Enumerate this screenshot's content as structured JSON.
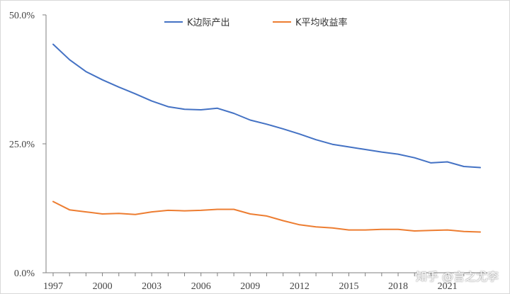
{
  "chart_data": {
    "type": "line",
    "x": [
      1997,
      1998,
      1999,
      2000,
      2001,
      2002,
      2003,
      2004,
      2005,
      2006,
      2007,
      2008,
      2009,
      2010,
      2011,
      2012,
      2013,
      2014,
      2015,
      2016,
      2017,
      2018,
      2019,
      2020,
      2021,
      2022,
      2023
    ],
    "x_ticks": [
      1997,
      2000,
      2003,
      2006,
      2009,
      2012,
      2015,
      2018,
      2021
    ],
    "y_ticks": [
      "50.0%",
      "25.0%",
      "0.0%"
    ],
    "y_tick_values": [
      50,
      25,
      0
    ],
    "ylim": [
      0,
      50
    ],
    "series": [
      {
        "name": "K边际产出",
        "color": "#4472c4",
        "values": [
          44.3,
          41.3,
          39.0,
          37.4,
          36.0,
          34.7,
          33.3,
          32.2,
          31.7,
          31.6,
          31.9,
          30.9,
          29.6,
          28.8,
          27.9,
          26.9,
          25.8,
          24.9,
          24.4,
          23.9,
          23.4,
          23.0,
          22.3,
          21.3,
          21.5,
          20.6,
          20.4
        ]
      },
      {
        "name": "K平均收益率",
        "color": "#ed7d31",
        "values": [
          13.8,
          12.2,
          11.8,
          11.4,
          11.5,
          11.3,
          11.8,
          12.1,
          12.0,
          12.1,
          12.3,
          12.3,
          11.4,
          11.0,
          10.1,
          9.3,
          8.9,
          8.7,
          8.3,
          8.3,
          8.4,
          8.4,
          8.1,
          8.2,
          8.3,
          8.0,
          7.9
        ]
      }
    ],
    "legend_position": "top",
    "grid": false
  },
  "watermark": "知乎 @言之尤李"
}
